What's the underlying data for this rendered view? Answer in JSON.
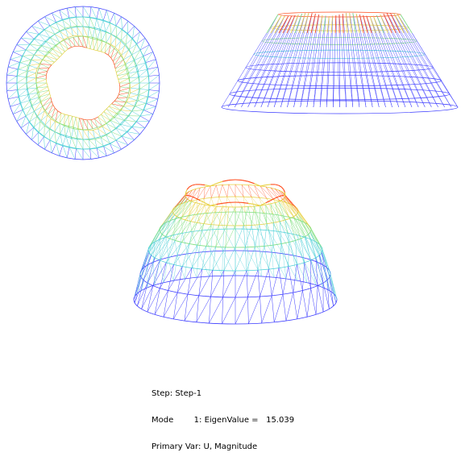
{
  "viewport_status": {
    "step_line": "Step: Step-1",
    "mode_line": "Mode        1: EigenValue =   15.039",
    "var_line": "Primary Var: U, Magnitude"
  },
  "colors": {
    "mesh_low": "#3a3aff",
    "mesh_mid": "#4fd0d8",
    "mesh_mid2": "#7fe07f",
    "mesh_high": "#e8d040",
    "mesh_peak": "#ff4a1a",
    "background": "#ffffff"
  },
  "views": [
    {
      "name": "top-view",
      "kind": "plan"
    },
    {
      "name": "side-view",
      "kind": "elevation"
    },
    {
      "name": "iso-view",
      "kind": "isometric"
    }
  ]
}
